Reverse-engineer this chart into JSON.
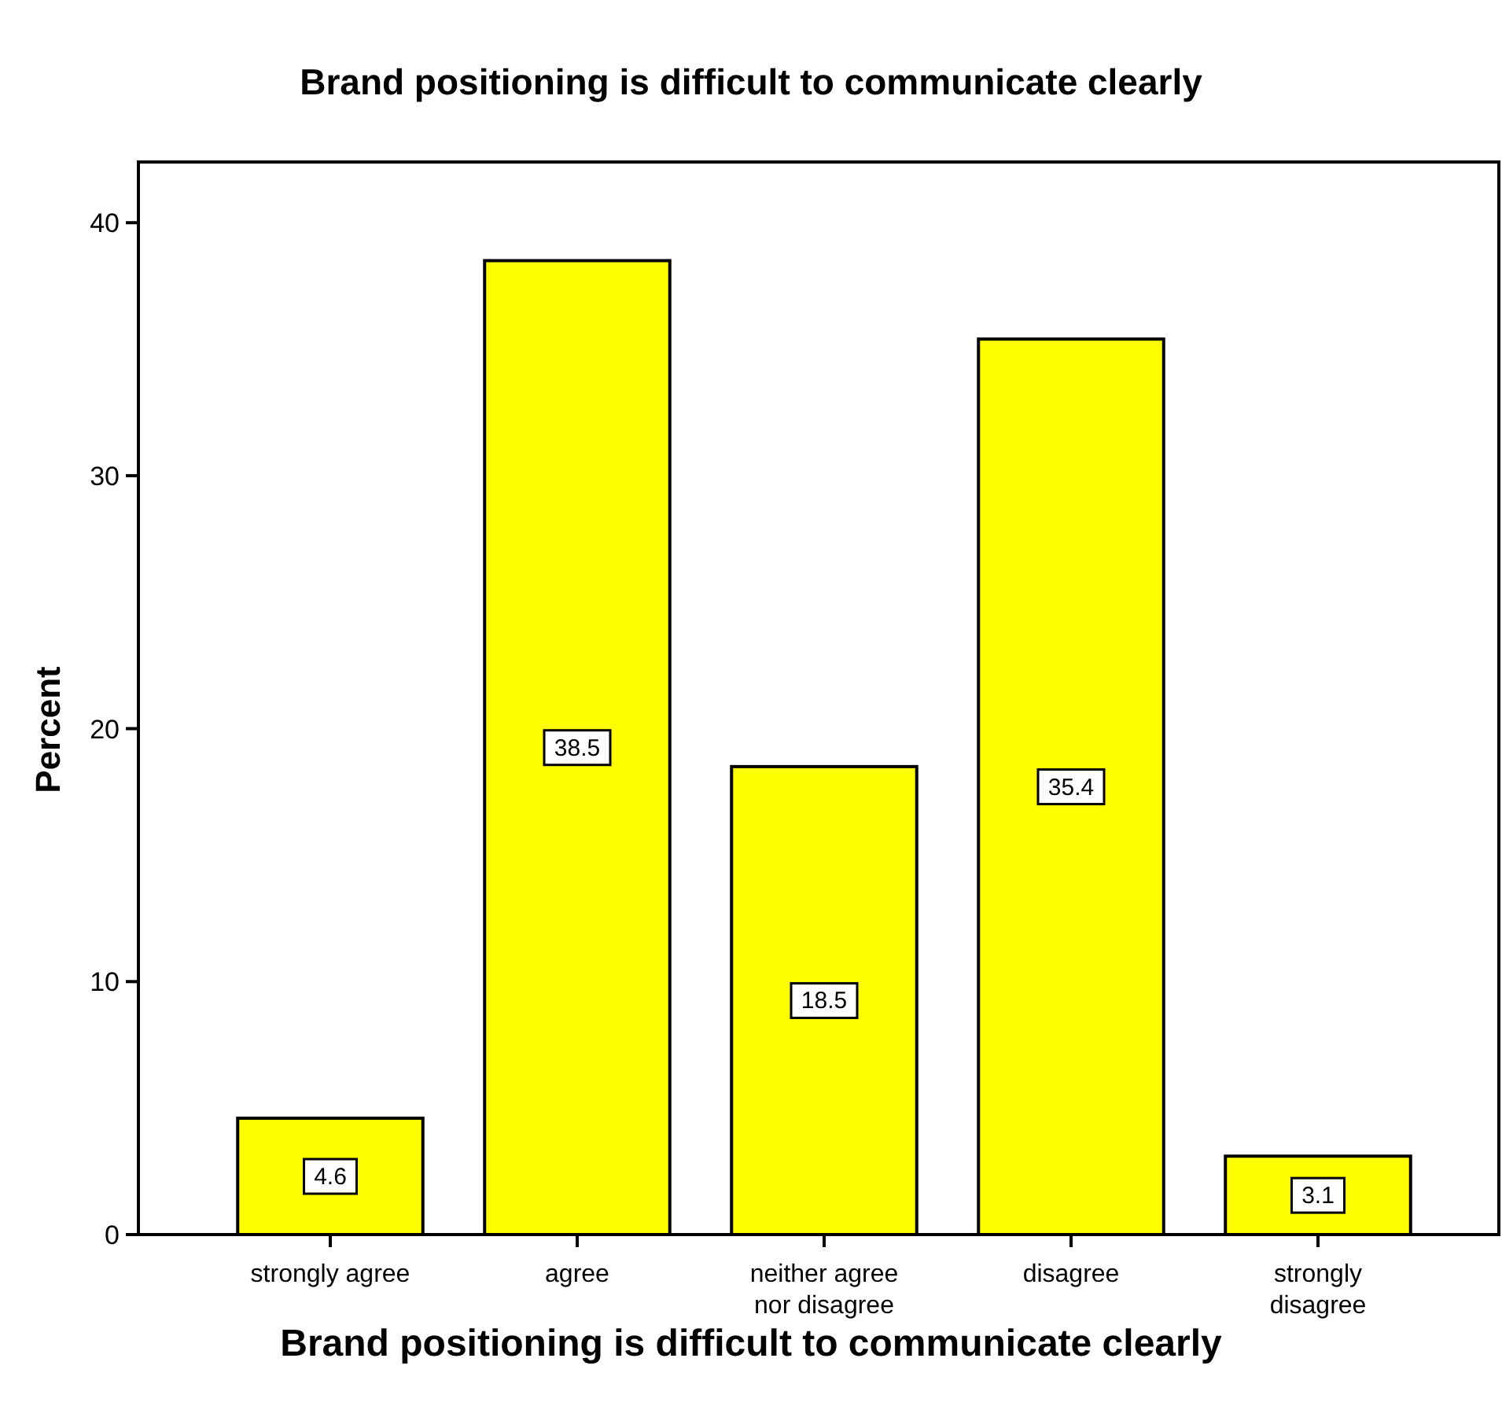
{
  "chart_data": {
    "type": "bar",
    "title": "Brand positioning is difficult to communicate clearly",
    "xlabel": "Brand positioning is difficult to communicate clearly",
    "ylabel": "Percent",
    "categories": [
      "strongly agree",
      "agree",
      "neither agree\nnor disagree",
      "disagree",
      "strongly\ndisagree"
    ],
    "values": [
      4.6,
      38.5,
      18.5,
      35.4,
      3.1
    ],
    "color": "#ffff00",
    "ylim": [
      0,
      42.4
    ],
    "yticks": [
      0,
      10,
      20,
      30,
      40
    ],
    "grid": false,
    "data_labels": true
  }
}
